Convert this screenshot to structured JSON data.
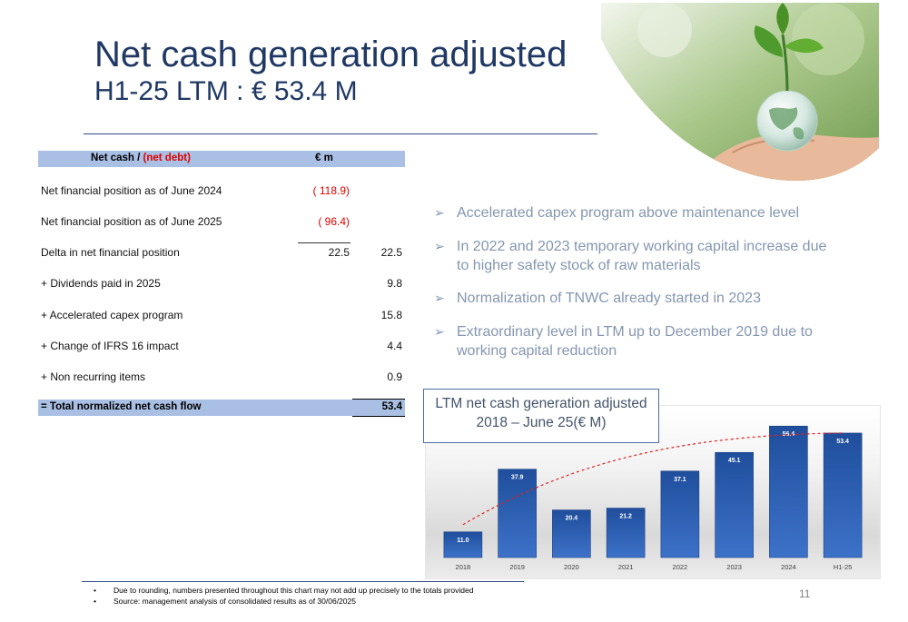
{
  "header": {
    "title": "Net cash generation adjusted",
    "subtitle": "H1-25 LTM : € 53.4 M"
  },
  "table": {
    "header_label": "Net cash / ",
    "header_label_red": "(net debt)",
    "header_label_close": "",
    "header_unit": "€ m",
    "rows": [
      {
        "label": "Net financial position as of  June 2024",
        "mid": "( 118.9)",
        "right": ""
      },
      {
        "label": "Net financial position as of June 2025",
        "mid": "( 96.4)",
        "right": ""
      },
      {
        "label": "Delta in net financial position",
        "mid": "22.5",
        "right": "22.5"
      },
      {
        "label": " + Dividends paid in 2025",
        "mid": "",
        "right": "9.8"
      },
      {
        "label": " + Accelerated capex program",
        "mid": "",
        "right": "15.8"
      },
      {
        "label": " + Change of IFRS 16 impact",
        "mid": "",
        "right": "4.4"
      },
      {
        "label": " + Non recurring items",
        "mid": "",
        "right": "0.9"
      }
    ],
    "total_label": "= Total normalized net cash flow",
    "total_value": "53.4"
  },
  "bullets": [
    "Accelerated capex program above maintenance level",
    "In 2022 and 2023 temporary working capital increase due to higher safety stock of raw materials",
    "Normalization of TNWC already started in 2023",
    "Extraordinary level in LTM up to December 2019 due to working capital reduction"
  ],
  "chart_data": {
    "type": "bar",
    "title": "LTM net cash generation adjusted 2018 – June 25(€ M)",
    "categories": [
      "2018",
      "2019",
      "2020",
      "2021",
      "2022",
      "2023",
      "2024",
      "H1-25"
    ],
    "values": [
      11.0,
      37.9,
      20.4,
      21.2,
      37.1,
      45.1,
      56.4,
      53.4
    ],
    "value_labels": [
      "11.0",
      "37.9",
      "20.4",
      "21.2",
      "37.1",
      "45.1",
      "56.4",
      "53.4"
    ],
    "ylim": [
      0,
      60
    ],
    "grid": false,
    "trendline": "red-dashed",
    "bar_color": "#2f5fb3"
  },
  "footer": {
    "notes": [
      "Due to rounding, numbers presented throughout this chart may not add up precisely to the totals provided",
      "Source: management analysis of consolidated results as of 30/06/2025"
    ],
    "page_number": "11"
  },
  "decor": {
    "photo": "hand-holding-glass-globe-with-plant-sprout"
  }
}
